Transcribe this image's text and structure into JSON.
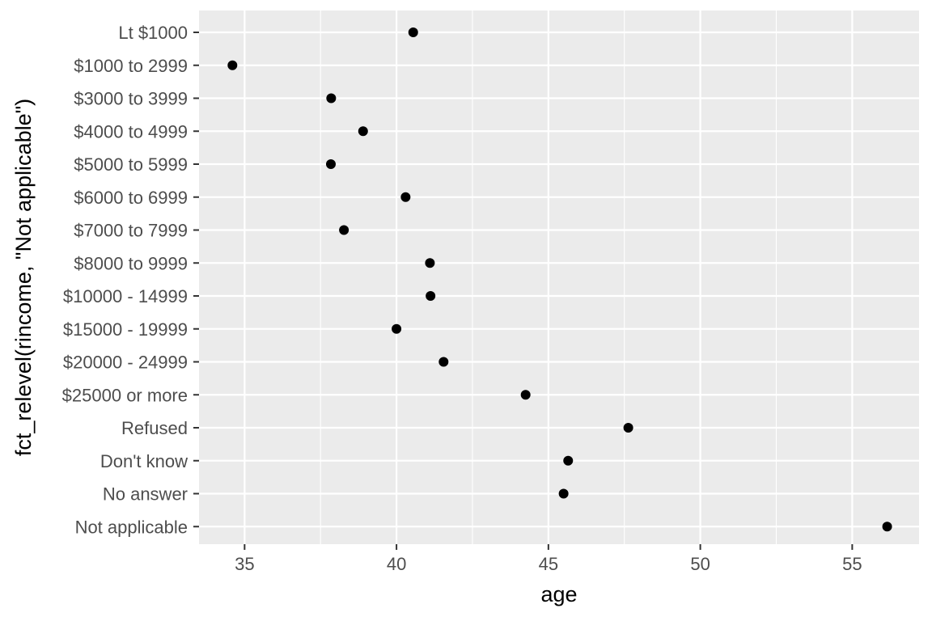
{
  "chart_data": {
    "type": "scatter",
    "title": "",
    "xlabel": "age",
    "ylabel": "fct_relevel(rincome, \"Not applicable\")",
    "xlim": [
      33.5,
      57.2
    ],
    "x_ticks": [
      35,
      40,
      45,
      50,
      55
    ],
    "x_tick_labels": [
      "35",
      "40",
      "45",
      "50",
      "55"
    ],
    "grid": true,
    "legend": "none",
    "colors": {
      "panel_bg": "#ebebeb",
      "grid": "#ffffff",
      "point": "#000000",
      "tick_text": "#4d4d4d",
      "tick_mark": "#333333"
    },
    "categories": [
      "Lt $1000",
      "$1000 to 2999",
      "$3000 to 3999",
      "$4000 to 4999",
      "$5000 to 5999",
      "$6000 to 6999",
      "$7000 to 7999",
      "$8000 to 9999",
      "$10000 - 14999",
      "$15000 - 19999",
      "$20000 - 24999",
      "$25000 or more",
      "Refused",
      "Don't know",
      "No answer",
      "Not applicable"
    ],
    "values": [
      40.55,
      34.6,
      37.85,
      38.9,
      37.84,
      40.3,
      38.27,
      41.1,
      41.12,
      40.0,
      41.55,
      44.25,
      47.63,
      45.65,
      45.5,
      56.15
    ]
  }
}
